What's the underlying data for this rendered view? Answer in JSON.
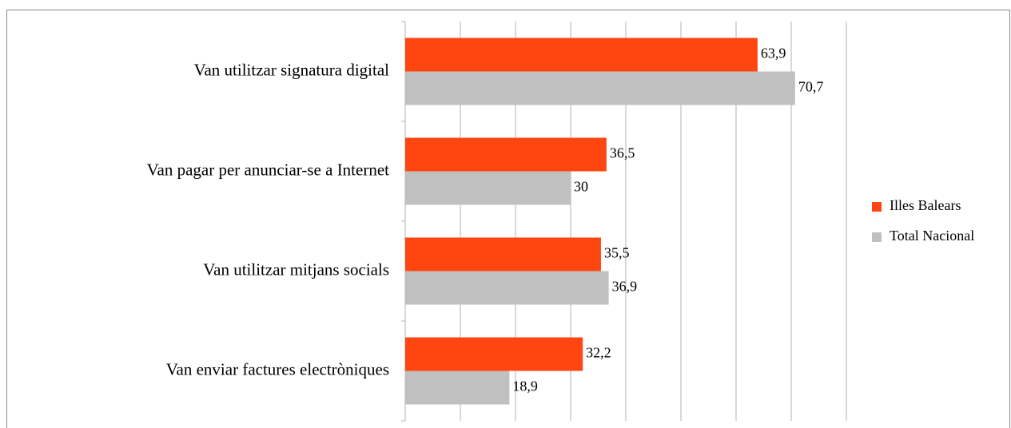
{
  "chart_data": {
    "type": "barh",
    "categories": [
      "Van utilitzar signatura digital",
      "Van pagar per anunciar-se a Internet",
      "Van utilitzar mitjans socials",
      "Van enviar factures electròniques"
    ],
    "series": [
      {
        "name": "Illes Balears",
        "color": "#ff4611",
        "values": [
          63.9,
          36.5,
          35.5,
          32.2
        ],
        "value_labels": [
          "63,9",
          "36,5",
          "35,5",
          "32,2"
        ]
      },
      {
        "name": "Total Nacional",
        "color": "#c0c0c0",
        "values": [
          70.7,
          30,
          36.9,
          18.9
        ],
        "value_labels": [
          "70,7",
          "30",
          "36,9",
          "18,9"
        ]
      }
    ],
    "xlim": [
      0,
      80
    ],
    "xticks": [
      0,
      10,
      20,
      30,
      40,
      50,
      60,
      70,
      80
    ],
    "grid": true,
    "legend": "right"
  }
}
